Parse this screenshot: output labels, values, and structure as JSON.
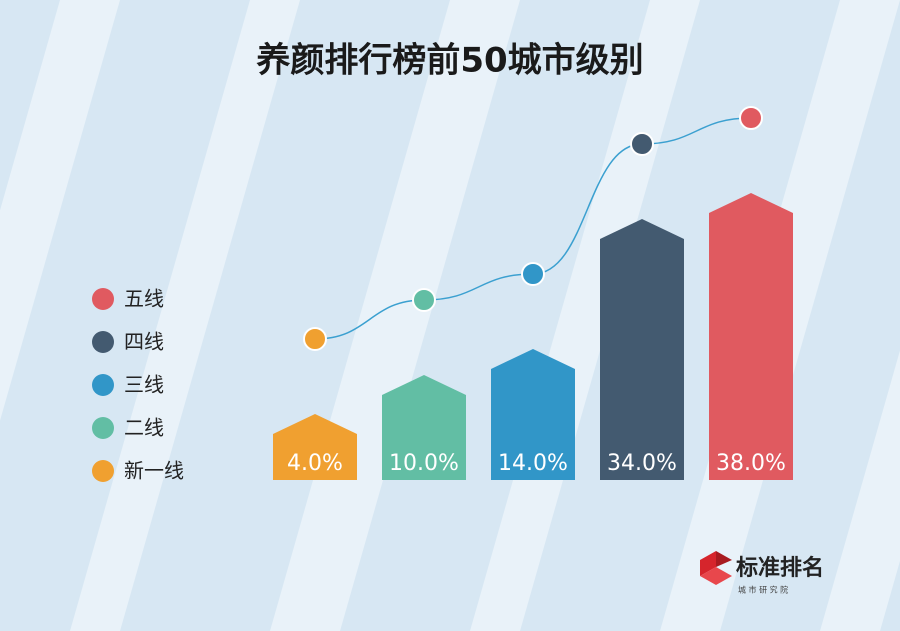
{
  "chart_data": {
    "type": "arrow-bar",
    "title": "养颜排行榜前50城市级别",
    "categories": [
      "新一线",
      "二线",
      "三线",
      "四线",
      "五线"
    ],
    "values": [
      4.0,
      10.0,
      14.0,
      34.0,
      38.0
    ],
    "value_labels": [
      "4.0%",
      "10.0%",
      "14.0%",
      "34.0%",
      "38.0%"
    ],
    "colors": [
      "#f0a030",
      "#62bea4",
      "#3196c8",
      "#435a70",
      "#e05a60"
    ],
    "line_color": "#3ba0d0",
    "legend": "left"
  },
  "brand": {
    "name": "标准排名",
    "subtitle": "城 市 研 究 院"
  }
}
